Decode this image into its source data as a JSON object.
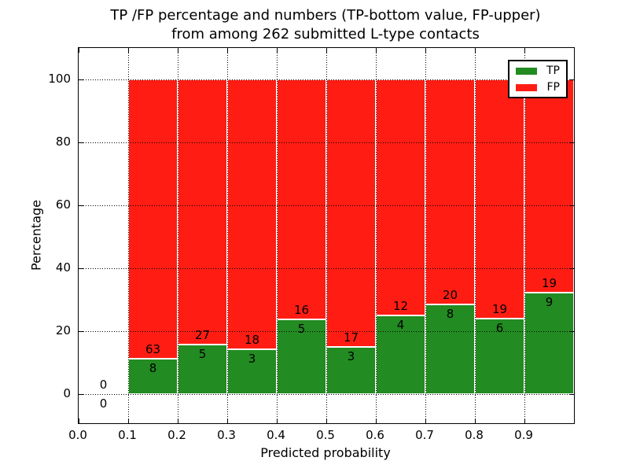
{
  "chart_data": {
    "type": "bar",
    "variant": "stacked-percentage",
    "title_line1": "TP /FP percentage and numbers (TP-bottom value, FP-upper)",
    "title_line2": "from among 262 submitted L-type contacts",
    "xlabel": "Predicted probability",
    "ylabel": "Percentage",
    "total_contacts": 262,
    "xlim": [
      0.0,
      1.0
    ],
    "ylim": [
      -9.25,
      110
    ],
    "bin_width": 0.1,
    "grid": "dotted",
    "x_tick_labels": [
      "0.0",
      "0.1",
      "0.2",
      "0.3",
      "0.4",
      "0.5",
      "0.6",
      "0.7",
      "0.8",
      "0.9"
    ],
    "y_ticks": [
      0,
      20,
      40,
      60,
      80,
      100
    ],
    "y_tick_labels": [
      "0",
      "20",
      "40",
      "60",
      "80",
      "100"
    ],
    "colors": {
      "tp": "#228B22",
      "fp": "#FF1D13"
    },
    "annotation_note": "FP count printed above TP/FP boundary, TP count below it",
    "legend": {
      "position": "upper-right",
      "entries": [
        {
          "label": "TP",
          "color": "#228B22"
        },
        {
          "label": "FP",
          "color": "#FF1D13"
        }
      ]
    },
    "bins": [
      {
        "x_start": 0.0,
        "x_end": 0.1,
        "tp_count": 0,
        "fp_count": 0,
        "tp_pct": 0,
        "fp_pct": 0
      },
      {
        "x_start": 0.1,
        "x_end": 0.2,
        "tp_count": 8,
        "fp_count": 63,
        "tp_pct": 11.27,
        "fp_pct": 88.73
      },
      {
        "x_start": 0.2,
        "x_end": 0.3,
        "tp_count": 5,
        "fp_count": 27,
        "tp_pct": 15.63,
        "fp_pct": 84.37
      },
      {
        "x_start": 0.3,
        "x_end": 0.4,
        "tp_count": 3,
        "fp_count": 18,
        "tp_pct": 14.29,
        "fp_pct": 85.71
      },
      {
        "x_start": 0.4,
        "x_end": 0.5,
        "tp_count": 5,
        "fp_count": 16,
        "tp_pct": 23.81,
        "fp_pct": 76.19
      },
      {
        "x_start": 0.5,
        "x_end": 0.6,
        "tp_count": 3,
        "fp_count": 17,
        "tp_pct": 15.0,
        "fp_pct": 85.0
      },
      {
        "x_start": 0.6,
        "x_end": 0.7,
        "tp_count": 4,
        "fp_count": 12,
        "tp_pct": 25.0,
        "fp_pct": 75.0
      },
      {
        "x_start": 0.7,
        "x_end": 0.8,
        "tp_count": 8,
        "fp_count": 20,
        "tp_pct": 28.57,
        "fp_pct": 71.43
      },
      {
        "x_start": 0.8,
        "x_end": 0.9,
        "tp_count": 6,
        "fp_count": 19,
        "tp_pct": 24.0,
        "fp_pct": 76.0
      },
      {
        "x_start": 0.9,
        "x_end": 1.0,
        "tp_count": 9,
        "fp_count": 19,
        "tp_pct": 32.14,
        "fp_pct": 67.86
      }
    ]
  }
}
